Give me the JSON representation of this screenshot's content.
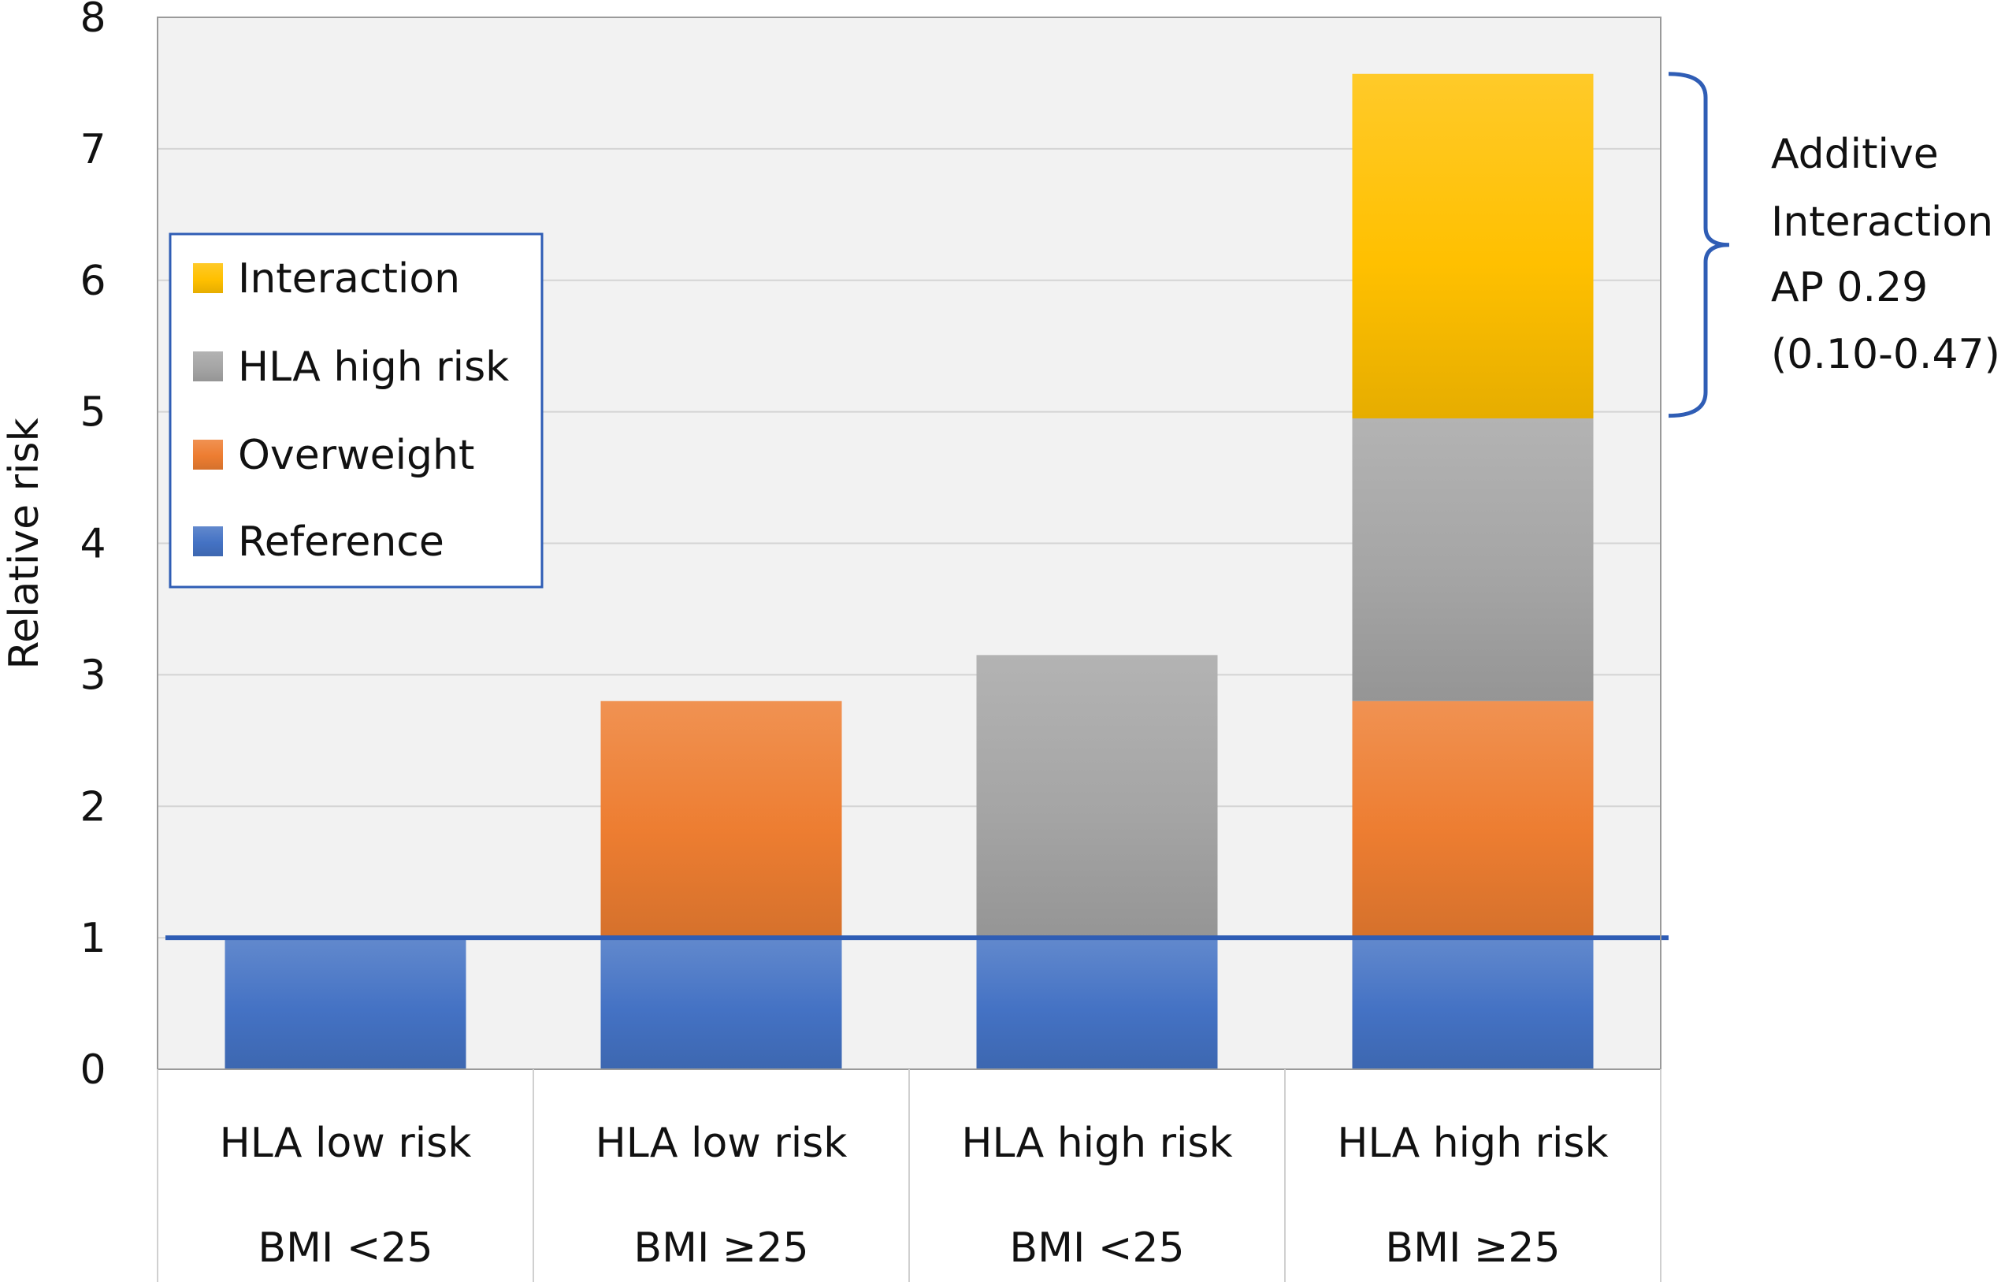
{
  "chart_data": {
    "type": "bar",
    "stacked": true,
    "ylabel": "Relative risk",
    "ylim": [
      0,
      8
    ],
    "yticks": [
      0,
      1,
      2,
      3,
      4,
      5,
      6,
      7,
      8
    ],
    "categories": [
      {
        "line1": "HLA low risk",
        "line2": "BMI <25"
      },
      {
        "line1": "HLA low risk",
        "line2": "BMI ≥25"
      },
      {
        "line1": "HLA high risk",
        "line2": "BMI <25"
      },
      {
        "line1": "HLA high risk",
        "line2": "BMI ≥25"
      }
    ],
    "series": [
      {
        "name": "Reference",
        "values": [
          1,
          1,
          1,
          1
        ],
        "color": "#4472C4"
      },
      {
        "name": "Overweight",
        "values": [
          0,
          1.8,
          0,
          1.8
        ],
        "color": "#ED7D31"
      },
      {
        "name": "HLA high risk",
        "values": [
          0,
          0,
          2.15,
          2.15
        ],
        "color": "#A5A5A5"
      },
      {
        "name": "Interaction",
        "values": [
          0,
          0,
          0,
          2.62
        ],
        "color": "#FFC000"
      }
    ],
    "legend_order": [
      "Interaction",
      "HLA high risk",
      "Overweight",
      "Reference"
    ],
    "legend_position": "upper-left",
    "reference_line": {
      "y": 1,
      "color": "#2F5DB5"
    },
    "annotation": {
      "lines": [
        "Additive",
        "Interaction",
        "AP 0.29",
        "(0.10-0.47)"
      ],
      "bracket_from": 4.97,
      "bracket_to": 7.57,
      "color": "#2F5DB5"
    },
    "grid": true
  }
}
